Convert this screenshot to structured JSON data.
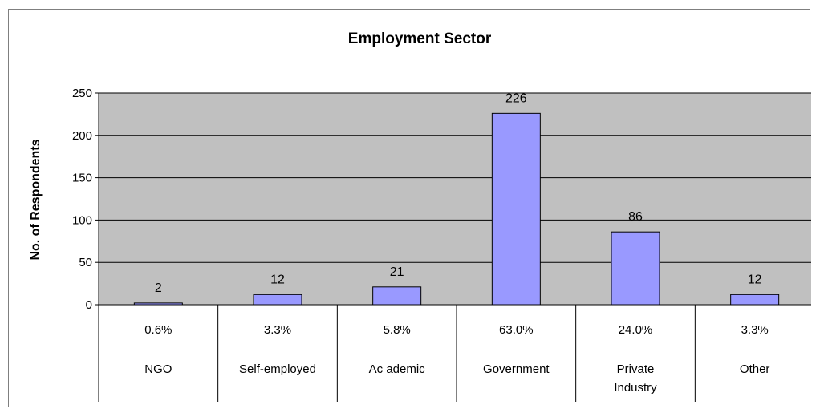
{
  "chart_data": {
    "type": "bar",
    "title": "Employment Sector",
    "ylabel": "No. of Respondents",
    "xlabel": "",
    "ylim": [
      0,
      250
    ],
    "yticks": [
      0,
      50,
      100,
      150,
      200,
      250
    ],
    "grid": true,
    "legend": "none",
    "categories": [
      "NGO",
      "Self-employed",
      "Academic",
      "Government",
      "Private Industry",
      "Other"
    ],
    "category_lines": [
      [
        "NGO"
      ],
      [
        "Self-employed"
      ],
      [
        "Ac ademic"
      ],
      [
        "Government"
      ],
      [
        "Private",
        "Industry"
      ],
      [
        "Other"
      ]
    ],
    "values": [
      2,
      12,
      21,
      226,
      86,
      12
    ],
    "data_labels": [
      "2",
      "12",
      "21",
      "226",
      "86",
      "12"
    ],
    "percentages": [
      "0.6%",
      "3.3%",
      "5.8%",
      "63.0%",
      "24.0%",
      "3.3%"
    ],
    "colors": {
      "bar_fill": "#9999ff",
      "bar_stroke": "#000000",
      "plot_background": "#c0c0c0",
      "gridline": "#000000"
    }
  }
}
